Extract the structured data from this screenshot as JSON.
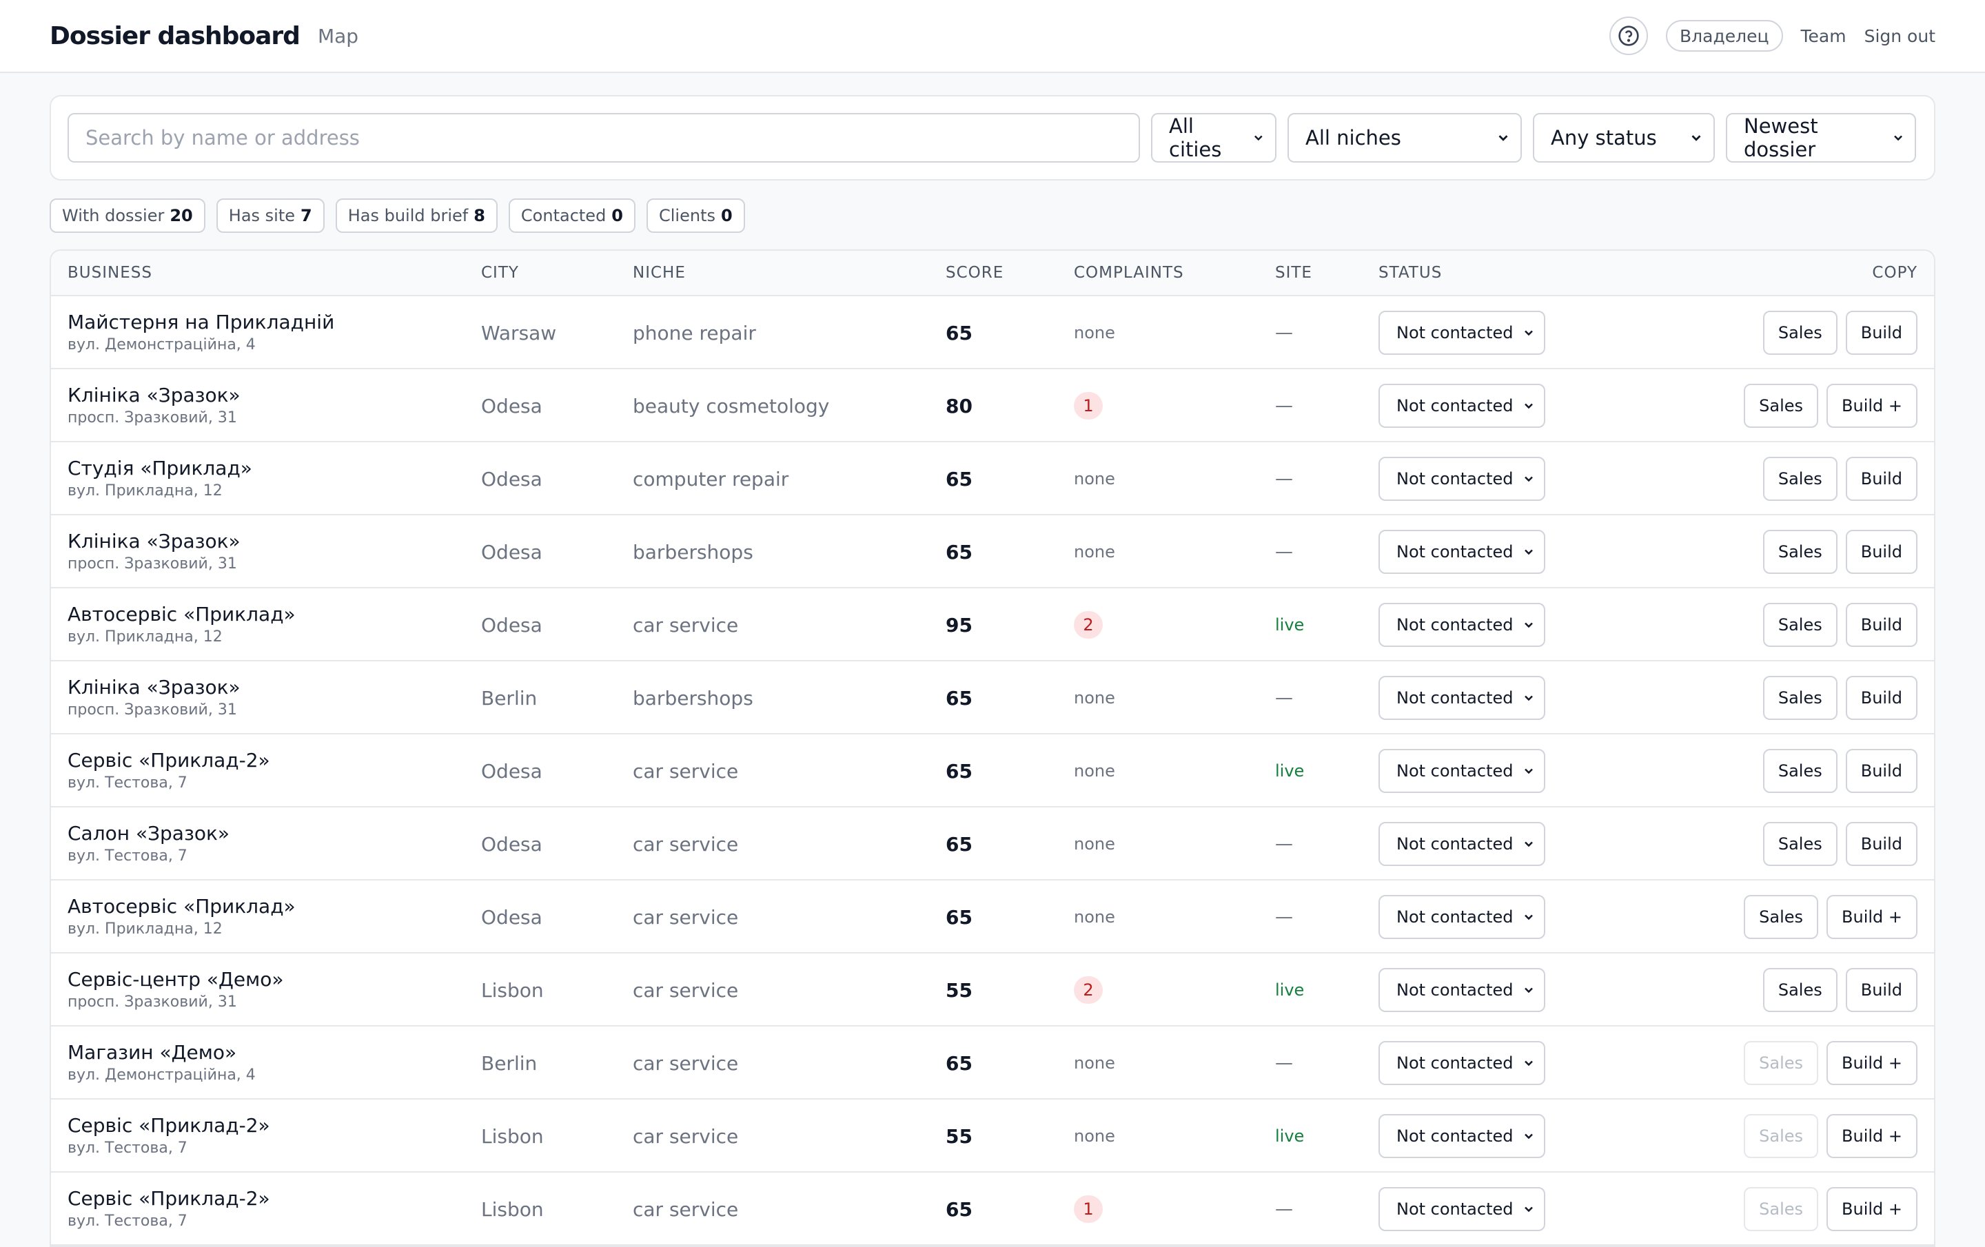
{
  "header": {
    "title": "Dossier dashboard",
    "nav_map": "Map",
    "owner": "Владелец",
    "team": "Team",
    "sign_out": "Sign out"
  },
  "filters": {
    "search_placeholder": "Search by name or address",
    "city": "All cities",
    "niche": "All niches",
    "status": "Any status",
    "sort": "Newest dossier"
  },
  "stats": [
    {
      "label": "With dossier",
      "value": "20"
    },
    {
      "label": "Has site",
      "value": "7"
    },
    {
      "label": "Has build brief",
      "value": "8"
    },
    {
      "label": "Contacted",
      "value": "0"
    },
    {
      "label": "Clients",
      "value": "0"
    }
  ],
  "table": {
    "columns": {
      "business": "BUSINESS",
      "city": "CITY",
      "niche": "NICHE",
      "score": "SCORE",
      "complaints": "COMPLAINTS",
      "site": "SITE",
      "status": "STATUS",
      "copy": "COPY"
    },
    "rows": [
      {
        "name": "Майстерня на Прикладній",
        "address": "вул. Демонстраційна, 4",
        "city": "Warsaw",
        "niche": "phone repair",
        "score": "65",
        "complaints": "none",
        "site": "—",
        "status": "Not contacted",
        "sales": "Sales",
        "sales_disabled": false,
        "build": "Build"
      },
      {
        "name": "Клініка «Зразок»",
        "address": "просп. Зразковий, 31",
        "city": "Odesa",
        "niche": "beauty cosmetology",
        "score": "80",
        "complaints": "1",
        "site": "—",
        "status": "Not contacted",
        "sales": "Sales",
        "sales_disabled": false,
        "build": "Build +"
      },
      {
        "name": "Студія «Приклад»",
        "address": "вул. Прикладна, 12",
        "city": "Odesa",
        "niche": "computer repair",
        "score": "65",
        "complaints": "none",
        "site": "—",
        "status": "Not contacted",
        "sales": "Sales",
        "sales_disabled": false,
        "build": "Build"
      },
      {
        "name": "Клініка «Зразок»",
        "address": "просп. Зразковий, 31",
        "city": "Odesa",
        "niche": "barbershops",
        "score": "65",
        "complaints": "none",
        "site": "—",
        "status": "Not contacted",
        "sales": "Sales",
        "sales_disabled": false,
        "build": "Build"
      },
      {
        "name": "Автосервіс «Приклад»",
        "address": "вул. Прикладна, 12",
        "city": "Odesa",
        "niche": "car service",
        "score": "95",
        "complaints": "2",
        "site": "live",
        "status": "Not contacted",
        "sales": "Sales",
        "sales_disabled": false,
        "build": "Build"
      },
      {
        "name": "Клініка «Зразок»",
        "address": "просп. Зразковий, 31",
        "city": "Berlin",
        "niche": "barbershops",
        "score": "65",
        "complaints": "none",
        "site": "—",
        "status": "Not contacted",
        "sales": "Sales",
        "sales_disabled": false,
        "build": "Build"
      },
      {
        "name": "Сервіс «Приклад-2»",
        "address": "вул. Тестова, 7",
        "city": "Odesa",
        "niche": "car service",
        "score": "65",
        "complaints": "none",
        "site": "live",
        "status": "Not contacted",
        "sales": "Sales",
        "sales_disabled": false,
        "build": "Build"
      },
      {
        "name": "Салон «Зразок»",
        "address": "вул. Тестова, 7",
        "city": "Odesa",
        "niche": "car service",
        "score": "65",
        "complaints": "none",
        "site": "—",
        "status": "Not contacted",
        "sales": "Sales",
        "sales_disabled": false,
        "build": "Build"
      },
      {
        "name": "Автосервіс «Приклад»",
        "address": "вул. Прикладна, 12",
        "city": "Odesa",
        "niche": "car service",
        "score": "65",
        "complaints": "none",
        "site": "—",
        "status": "Not contacted",
        "sales": "Sales",
        "sales_disabled": false,
        "build": "Build +"
      },
      {
        "name": "Сервіс-центр «Демо»",
        "address": "просп. Зразковий, 31",
        "city": "Lisbon",
        "niche": "car service",
        "score": "55",
        "complaints": "2",
        "site": "live",
        "status": "Not contacted",
        "sales": "Sales",
        "sales_disabled": false,
        "build": "Build"
      },
      {
        "name": "Магазин «Демо»",
        "address": "вул. Демонстраційна, 4",
        "city": "Berlin",
        "niche": "car service",
        "score": "65",
        "complaints": "none",
        "site": "—",
        "status": "Not contacted",
        "sales": "Sales",
        "sales_disabled": true,
        "build": "Build +"
      },
      {
        "name": "Сервіс «Приклад-2»",
        "address": "вул. Тестова, 7",
        "city": "Lisbon",
        "niche": "car service",
        "score": "55",
        "complaints": "none",
        "site": "live",
        "status": "Not contacted",
        "sales": "Sales",
        "sales_disabled": true,
        "build": "Build +"
      },
      {
        "name": "Сервіс «Приклад-2»",
        "address": "вул. Тестова, 7",
        "city": "Lisbon",
        "niche": "car service",
        "score": "65",
        "complaints": "1",
        "site": "—",
        "status": "Not contacted",
        "sales": "Sales",
        "sales_disabled": true,
        "build": "Build +"
      }
    ]
  }
}
